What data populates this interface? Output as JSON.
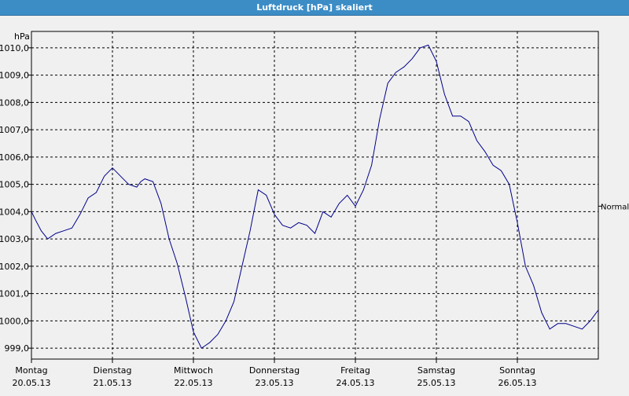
{
  "window": {
    "title": "Luftdruck [hPa] skaliert"
  },
  "chart_data": {
    "type": "line",
    "title": "Luftdruck [hPa] skaliert",
    "unit_label": "hPa",
    "ylim": [
      998.6,
      1010.6
    ],
    "y_ticks": [
      "999,0",
      "1000,0",
      "1001,0",
      "1002,0",
      "1003,0",
      "1004,0",
      "1005,0",
      "1006,0",
      "1007,0",
      "1008,0",
      "1009,0",
      "1010,0"
    ],
    "y_tick_values": [
      999,
      1000,
      1001,
      1002,
      1003,
      1004,
      1005,
      1006,
      1007,
      1008,
      1009,
      1010
    ],
    "x_days": [
      {
        "day": "Montag",
        "date": "20.05.13"
      },
      {
        "day": "Dienstag",
        "date": "21.05.13"
      },
      {
        "day": "Mittwoch",
        "date": "22.05.13"
      },
      {
        "day": "Donnerstag",
        "date": "23.05.13"
      },
      {
        "day": "Freitag",
        "date": "24.05.13"
      },
      {
        "day": "Samstag",
        "date": "25.05.13"
      },
      {
        "day": "Sonntag",
        "date": "26.05.13"
      }
    ],
    "reference_line": {
      "label": "Normal",
      "value": 1004.2
    },
    "grid": true,
    "series": [
      {
        "color": "#00008b",
        "x": [
          0.0,
          0.05,
          0.12,
          0.2,
          0.3,
          0.4,
          0.5,
          0.6,
          0.7,
          0.8,
          0.9,
          1.0,
          1.1,
          1.2,
          1.3,
          1.35,
          1.4,
          1.5,
          1.6,
          1.7,
          1.8,
          1.9,
          2.0,
          2.1,
          2.15,
          2.2,
          2.3,
          2.4,
          2.5,
          2.6,
          2.7,
          2.8,
          2.9,
          3.0,
          3.1,
          3.2,
          3.3,
          3.4,
          3.5,
          3.6,
          3.7,
          3.8,
          3.9,
          4.0,
          4.1,
          4.2,
          4.3,
          4.4,
          4.5,
          4.6,
          4.7,
          4.8,
          4.9,
          5.0,
          5.1,
          5.2,
          5.3,
          5.4,
          5.5,
          5.6,
          5.7,
          5.8,
          5.9,
          6.0,
          6.1,
          6.2,
          6.3,
          6.4,
          6.5,
          6.6,
          6.7,
          6.8,
          6.9,
          7.0
        ],
        "y": [
          1004.0,
          1003.7,
          1003.3,
          1003.0,
          1003.2,
          1003.3,
          1003.4,
          1003.9,
          1004.5,
          1004.7,
          1005.3,
          1005.6,
          1005.3,
          1005.0,
          1004.9,
          1005.1,
          1005.2,
          1005.1,
          1004.3,
          1003.0,
          1002.1,
          1000.9,
          999.6,
          999.0,
          999.1,
          999.2,
          999.5,
          1000.0,
          1000.7,
          1002.0,
          1003.3,
          1004.8,
          1004.6,
          1003.9,
          1003.5,
          1003.4,
          1003.6,
          1003.5,
          1003.2,
          1004.0,
          1003.8,
          1004.3,
          1004.6,
          1004.2,
          1004.8,
          1005.7,
          1007.4,
          1008.7,
          1009.1,
          1009.3,
          1009.6,
          1010.0,
          1010.1,
          1009.5,
          1008.3,
          1007.5,
          1007.5,
          1007.3,
          1006.6,
          1006.2,
          1005.7,
          1005.5,
          1005.0,
          1003.6,
          1002.0,
          1001.3,
          1000.3,
          999.7,
          999.9,
          999.9,
          999.8,
          999.7,
          1000.0,
          1000.4
        ]
      }
    ]
  }
}
